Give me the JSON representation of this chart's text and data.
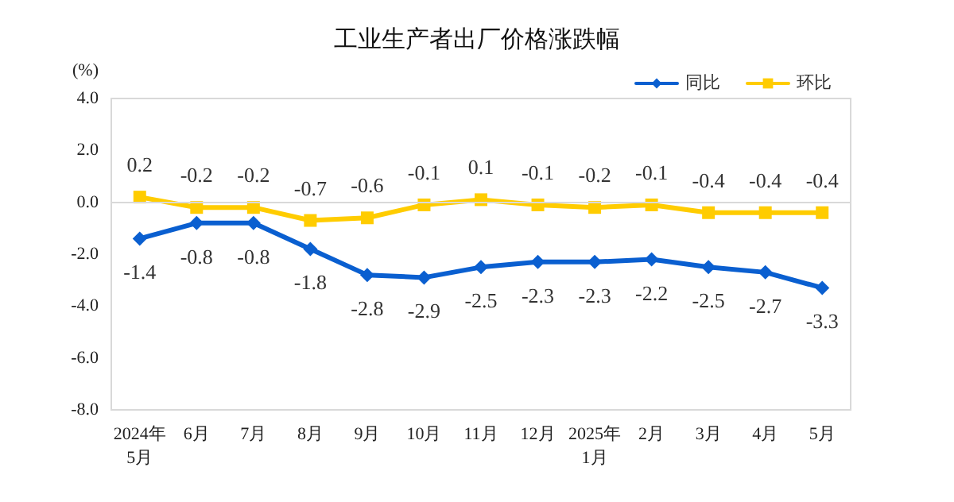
{
  "chart_data": {
    "type": "line",
    "title": "工业生产者出厂价格涨跌幅",
    "ylabel": "(%)",
    "categories": [
      "2024年\n5月",
      "6月",
      "7月",
      "8月",
      "9月",
      "10月",
      "11月",
      "12月",
      "2025年\n1月",
      "2月",
      "3月",
      "4月",
      "5月"
    ],
    "series": [
      {
        "name": "同比",
        "color": "#0a5fd0",
        "marker": "diamond",
        "values": [
          -1.4,
          -0.8,
          -0.8,
          -1.8,
          -2.8,
          -2.9,
          -2.5,
          -2.3,
          -2.3,
          -2.2,
          -2.5,
          -2.7,
          -3.3
        ]
      },
      {
        "name": "环比",
        "color": "#ffcc00",
        "marker": "square",
        "values": [
          0.2,
          -0.2,
          -0.2,
          -0.7,
          -0.6,
          -0.1,
          0.1,
          -0.1,
          -0.2,
          -0.1,
          -0.4,
          -0.4,
          -0.4
        ]
      }
    ],
    "ylim": [
      -8,
      4
    ],
    "yticks": [
      {
        "value": -8,
        "label": "-8.0"
      },
      {
        "value": -6,
        "label": "-6.0"
      },
      {
        "value": -4,
        "label": "-4.0"
      },
      {
        "value": -2,
        "label": "-2.0"
      },
      {
        "value": 0,
        "label": "0.0"
      },
      {
        "value": 2,
        "label": "2.0"
      },
      {
        "value": 4,
        "label": "4.0"
      }
    ],
    "ref_lines": [
      {
        "axis": "y",
        "value": 0,
        "color": "#d9d9d9"
      }
    ],
    "data_labels": true,
    "legend": "top right",
    "grid": false,
    "line_style": "solid"
  }
}
